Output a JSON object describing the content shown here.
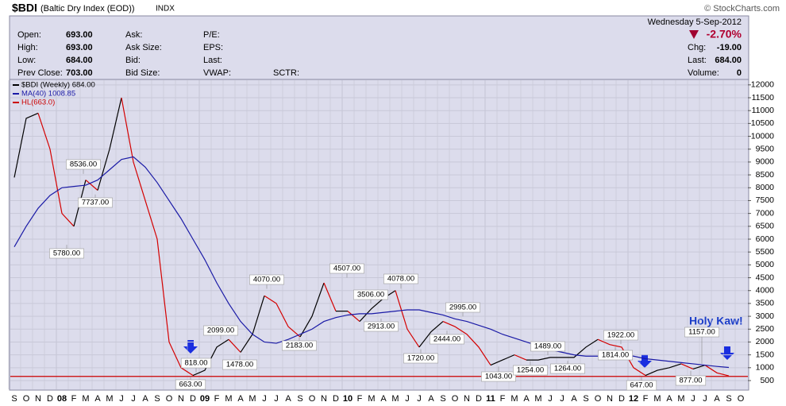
{
  "header": {
    "symbol": "$BDI",
    "name": "(Baltic Dry Index (EOD))",
    "exchange": "INDX",
    "source": "© StockCharts.com",
    "date": "Wednesday  5-Sep-2012",
    "change_pct": "-2.70%",
    "quote_columns": [
      [
        {
          "label": "Open:",
          "value": "693.00"
        },
        {
          "label": "High:",
          "value": "693.00"
        },
        {
          "label": "Low:",
          "value": "684.00"
        },
        {
          "label": "Prev Close:",
          "value": "703.00"
        }
      ],
      [
        {
          "label": "Ask:"
        },
        {
          "label": "Ask Size:"
        },
        {
          "label": "Bid:"
        },
        {
          "label": "Bid Size:"
        }
      ],
      [
        {
          "label": "P/E:"
        },
        {
          "label": "EPS:"
        },
        {
          "label": "Last:"
        },
        {
          "label": "VWAP:"
        }
      ]
    ],
    "sctr": "SCTR:",
    "right_fields": [
      {
        "label": "Chg:",
        "value": "-19.00"
      },
      {
        "label": "Last:",
        "value": "684.00"
      },
      {
        "label": "Volume:",
        "value": "0"
      }
    ]
  },
  "chart_data": {
    "type": "line",
    "categories": [
      "S",
      "O",
      "N",
      "D",
      "08",
      "F",
      "M",
      "A",
      "M",
      "J",
      "J",
      "A",
      "S",
      "O",
      "N",
      "D",
      "09",
      "F",
      "M",
      "A",
      "M",
      "J",
      "J",
      "A",
      "S",
      "O",
      "N",
      "D",
      "10",
      "F",
      "M",
      "A",
      "M",
      "J",
      "J",
      "A",
      "S",
      "O",
      "N",
      "D",
      "11",
      "F",
      "M",
      "A",
      "M",
      "J",
      "J",
      "A",
      "S",
      "O",
      "N",
      "D",
      "12",
      "F",
      "M",
      "A",
      "M",
      "J",
      "J",
      "A",
      "S",
      "O"
    ],
    "series": [
      {
        "name": "$BDI (Weekly) 684.00",
        "color": "#000000",
        "down_color": "#d40000",
        "values": [
          8400,
          10700,
          10900,
          9500,
          7000,
          6500,
          8300,
          7900,
          9500,
          11500,
          9000,
          7500,
          6000,
          2000,
          1000,
          700,
          900,
          1800,
          2100,
          1600,
          2300,
          3800,
          3500,
          2600,
          2200,
          3000,
          4300,
          3200,
          3200,
          2800,
          3300,
          3700,
          4000,
          2500,
          1800,
          2400,
          2800,
          2600,
          2300,
          1800,
          1100,
          1300,
          1500,
          1300,
          1300,
          1400,
          1400,
          1400,
          1800,
          2100,
          1900,
          1800,
          1000,
          700,
          900,
          1000,
          1150,
          950,
          1100,
          800,
          684,
          null
        ]
      },
      {
        "name": "MA(40) 1008.85",
        "color": "#1a1aa6",
        "values": [
          5700,
          6500,
          7200,
          7700,
          8000,
          8050,
          8100,
          8300,
          8700,
          9100,
          9200,
          8800,
          8200,
          7500,
          6800,
          6000,
          5200,
          4300,
          3500,
          2800,
          2300,
          2000,
          1950,
          2100,
          2300,
          2500,
          2800,
          2950,
          3050,
          3100,
          3100,
          3150,
          3200,
          3250,
          3250,
          3150,
          3050,
          2900,
          2800,
          2650,
          2500,
          2300,
          2150,
          2000,
          1850,
          1700,
          1600,
          1500,
          1450,
          1450,
          1480,
          1500,
          1450,
          1350,
          1300,
          1250,
          1200,
          1150,
          1100,
          1050,
          1009,
          null
        ]
      }
    ],
    "reference_lines": [
      {
        "name": "HL(663.0)",
        "value": 663,
        "color": "#cc0000"
      }
    ],
    "ylim": [
      160,
      12180
    ],
    "yticks": [
      500,
      1000,
      1500,
      2000,
      2500,
      3000,
      3500,
      4000,
      4500,
      5000,
      5500,
      6000,
      6500,
      7000,
      7500,
      8000,
      8500,
      9000,
      9500,
      10000,
      10500,
      11000,
      11500,
      12000
    ],
    "grid": true,
    "annotations": [
      {
        "text": "8536.00",
        "value": 8536
      },
      {
        "text": "7737.00",
        "value": 7737
      },
      {
        "text": "5780.00",
        "value": 5780
      },
      {
        "text": "818.00",
        "value": 818
      },
      {
        "text": "663.00",
        "value": 663
      },
      {
        "text": "2099.00",
        "value": 2099
      },
      {
        "text": "1478.00",
        "value": 1478
      },
      {
        "text": "4070.00",
        "value": 4070
      },
      {
        "text": "2183.00",
        "value": 2183
      },
      {
        "text": "4507.00",
        "value": 4507
      },
      {
        "text": "3506.00",
        "value": 3506
      },
      {
        "text": "2913.00",
        "value": 2913
      },
      {
        "text": "4078.00",
        "value": 4078
      },
      {
        "text": "1720.00",
        "value": 1720
      },
      {
        "text": "2995.00",
        "value": 2995
      },
      {
        "text": "2444.00",
        "value": 2444
      },
      {
        "text": "1489.00",
        "value": 1489
      },
      {
        "text": "1043.00",
        "value": 1043
      },
      {
        "text": "1254.00",
        "value": 1254
      },
      {
        "text": "1264.00",
        "value": 1264
      },
      {
        "text": "1922.00",
        "value": 1922
      },
      {
        "text": "1814.00",
        "value": 1814
      },
      {
        "text": "647.00",
        "value": 647
      },
      {
        "text": "1157.00",
        "value": 1157
      },
      {
        "text": "877.00",
        "value": 877
      }
    ],
    "note": "Holy Kaw!"
  }
}
